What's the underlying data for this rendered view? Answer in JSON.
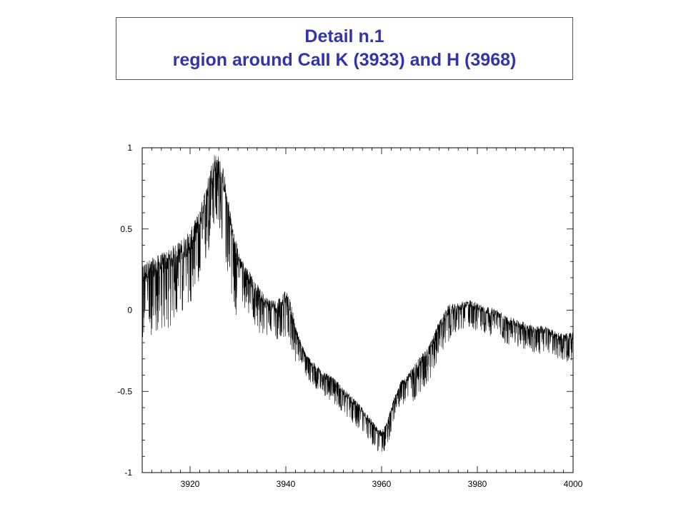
{
  "slide": {
    "title_line1": "Detail n.1",
    "title_line2": "region around CaII K (3933) and H (3968)",
    "title_color": "#3333aa"
  },
  "chart_data": {
    "type": "line",
    "title": "Detail n.1 region around CaII K (3933) and H (3968)",
    "xlabel": "",
    "ylabel": "",
    "xlim": [
      3910,
      4000
    ],
    "ylim": [
      -1,
      1
    ],
    "xticks": [
      3920,
      3940,
      3960,
      3980,
      4000
    ],
    "yticks": [
      1,
      0.5,
      0,
      -0.5,
      -1
    ],
    "xtick_labels": [
      "3920",
      "3940",
      "3960",
      "3980",
      "4000"
    ],
    "ytick_labels": [
      "1",
      "0.5",
      "0",
      "-0.5",
      "-1"
    ],
    "grid": false,
    "line_color": "#000000",
    "series": [
      {
        "x": [
          3910,
          3912,
          3914,
          3916,
          3918,
          3920,
          3922,
          3924,
          3925,
          3926,
          3927,
          3928,
          3929,
          3930,
          3932,
          3934,
          3936,
          3938,
          3939,
          3940,
          3941,
          3942,
          3944,
          3946,
          3948,
          3950,
          3952,
          3954,
          3956,
          3958,
          3959,
          3960,
          3961,
          3962,
          3963,
          3964,
          3966,
          3968,
          3970,
          3972,
          3974,
          3976,
          3978,
          3980,
          3982,
          3984,
          3986,
          3988,
          3990,
          3992,
          3994,
          3996,
          3998,
          4000
        ],
        "y": [
          0.22,
          0.25,
          0.28,
          0.32,
          0.36,
          0.42,
          0.55,
          0.78,
          0.9,
          0.88,
          0.8,
          0.62,
          0.45,
          0.32,
          0.22,
          0.12,
          0.04,
          0.02,
          0.06,
          0.08,
          0.02,
          -0.12,
          -0.28,
          -0.35,
          -0.4,
          -0.44,
          -0.5,
          -0.56,
          -0.62,
          -0.7,
          -0.74,
          -0.76,
          -0.72,
          -0.62,
          -0.52,
          -0.46,
          -0.4,
          -0.32,
          -0.24,
          -0.1,
          0.0,
          0.02,
          0.04,
          0.02,
          0.0,
          -0.02,
          -0.06,
          -0.08,
          -0.1,
          -0.12,
          -0.12,
          -0.15,
          -0.17,
          -0.16
        ]
      }
    ]
  }
}
